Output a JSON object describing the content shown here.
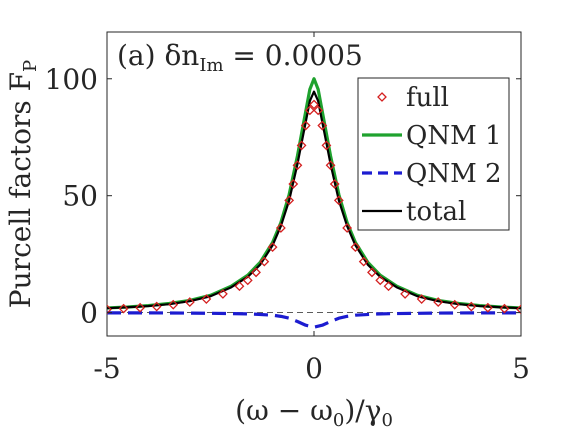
{
  "chart_data": {
    "type": "line",
    "panel_label": "(a) δn",
    "panel_label_sub": "Im",
    "panel_label_value": " = 0.0005",
    "xlabel": "(ω − ω",
    "xlabel_sub": "0",
    "xlabel_tail": ")/γ",
    "xlabel_tail_sub": "0",
    "ylabel": "Purcell factors F",
    "ylabel_sub": "P",
    "xlim": [
      -5,
      5
    ],
    "ylim": [
      -10,
      120
    ],
    "xticks": [
      -5,
      0,
      5
    ],
    "xtick_labels": [
      "-5",
      "0",
      "5"
    ],
    "yticks": [
      0,
      50,
      100
    ],
    "ytick_labels": [
      "0",
      "50",
      "100"
    ],
    "grid": false,
    "legend_position": "top-right",
    "series": [
      {
        "name": "full",
        "style": "markers",
        "color": "#d42020",
        "x": [
          -5.0,
          -4.6,
          -4.2,
          -3.8,
          -3.4,
          -3.0,
          -2.6,
          -2.2,
          -1.8,
          -1.6,
          -1.4,
          -1.2,
          -1.0,
          -0.8,
          -0.6,
          -0.5,
          -0.4,
          -0.3,
          -0.2,
          -0.1,
          0.0,
          0.1,
          0.2,
          0.3,
          0.4,
          0.5,
          0.6,
          0.8,
          1.0,
          1.2,
          1.4,
          1.6,
          1.8,
          2.2,
          2.6,
          3.0,
          3.4,
          3.8,
          4.2,
          4.6,
          5.0
        ],
        "y": [
          1.4,
          1.7,
          2.1,
          2.6,
          3.4,
          4.5,
          5.8,
          8.0,
          11.3,
          13.8,
          17.2,
          21.8,
          28.0,
          36.2,
          48.0,
          55.0,
          63.0,
          71.5,
          80.0,
          86.5,
          89.0,
          86.5,
          80.0,
          71.5,
          63.0,
          55.0,
          48.0,
          36.2,
          28.0,
          21.8,
          17.2,
          13.8,
          11.3,
          8.0,
          5.8,
          4.5,
          3.4,
          2.6,
          2.1,
          1.7,
          1.4
        ]
      },
      {
        "name": "QNM 1",
        "style": "solid",
        "color": "#1fa22e",
        "x": [
          -5.0,
          -4.5,
          -4.0,
          -3.5,
          -3.0,
          -2.5,
          -2.0,
          -1.6,
          -1.3,
          -1.0,
          -0.8,
          -0.6,
          -0.4,
          -0.3,
          -0.2,
          -0.1,
          0.0,
          0.1,
          0.2,
          0.3,
          0.4,
          0.6,
          0.8,
          1.0,
          1.3,
          1.6,
          2.0,
          2.5,
          3.0,
          3.5,
          4.0,
          4.5,
          5.0
        ],
        "y": [
          2.0,
          2.4,
          3.0,
          3.9,
          5.2,
          7.4,
          11.3,
          16.0,
          21.5,
          30.0,
          38.5,
          50.5,
          67.0,
          76.5,
          86.0,
          95.5,
          100.0,
          95.5,
          86.0,
          76.5,
          67.0,
          50.5,
          38.5,
          30.0,
          21.5,
          16.0,
          11.3,
          7.4,
          5.2,
          3.9,
          3.0,
          2.4,
          2.0
        ]
      },
      {
        "name": "QNM 2",
        "style": "dashed",
        "color": "#1c1cd0",
        "x": [
          -5.0,
          -4.0,
          -3.0,
          -2.0,
          -1.5,
          -1.0,
          -0.8,
          -0.6,
          -0.4,
          -0.2,
          0.0,
          0.2,
          0.4,
          0.6,
          0.8,
          1.0,
          1.5,
          2.0,
          3.0,
          4.0,
          5.0
        ],
        "y": [
          -0.1,
          -0.1,
          -0.2,
          -0.4,
          -0.6,
          -1.1,
          -1.6,
          -2.4,
          -3.8,
          -5.4,
          -6.2,
          -5.4,
          -3.8,
          -2.4,
          -1.6,
          -1.1,
          -0.6,
          -0.4,
          -0.2,
          -0.1,
          -0.1
        ]
      },
      {
        "name": "total",
        "style": "solid",
        "color": "#000000",
        "x": [
          -5.0,
          -4.5,
          -4.0,
          -3.5,
          -3.0,
          -2.5,
          -2.0,
          -1.6,
          -1.3,
          -1.0,
          -0.8,
          -0.6,
          -0.4,
          -0.3,
          -0.2,
          -0.1,
          0.0,
          0.1,
          0.2,
          0.3,
          0.4,
          0.6,
          0.8,
          1.0,
          1.3,
          1.6,
          2.0,
          2.5,
          3.0,
          3.5,
          4.0,
          4.5,
          5.0
        ],
        "y": [
          1.9,
          2.3,
          2.8,
          3.6,
          4.9,
          7.0,
          10.8,
          15.3,
          20.5,
          28.8,
          37.0,
          48.0,
          63.5,
          72.5,
          81.5,
          90.5,
          94.5,
          90.5,
          81.5,
          72.5,
          63.5,
          48.0,
          37.0,
          28.8,
          20.5,
          15.3,
          10.8,
          7.0,
          4.9,
          3.6,
          2.8,
          2.3,
          1.9
        ]
      }
    ]
  }
}
